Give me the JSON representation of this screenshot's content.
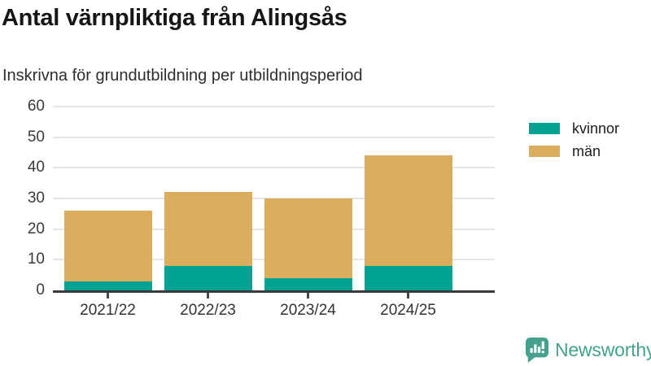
{
  "header": {
    "title": "Antal värnpliktiga från Alingsås",
    "subtitle": "Inskrivna för grundutbildning per utbildningsperiod"
  },
  "chart_data": {
    "type": "bar",
    "stacked": true,
    "title": "Antal värnpliktiga från Alingsås",
    "subtitle": "Inskrivna för grundutbildning per utbildningsperiod",
    "categories": [
      "2021/22",
      "2022/23",
      "2023/24",
      "2024/25"
    ],
    "series": [
      {
        "name": "kvinnor",
        "color": "#00a294",
        "values": [
          3,
          8,
          4,
          8
        ]
      },
      {
        "name": "män",
        "color": "#d9ad5b",
        "values": [
          23,
          24,
          26,
          36
        ]
      }
    ],
    "totals": [
      26,
      32,
      30,
      44
    ],
    "xlabel": "",
    "ylabel": "",
    "ylim": [
      0,
      60
    ],
    "yticks": [
      0,
      10,
      20,
      30,
      40,
      50,
      60
    ],
    "grid": true,
    "legend_position": "right"
  },
  "legend": {
    "items": [
      {
        "label": "kvinnor",
        "color": "#00a294"
      },
      {
        "label": "män",
        "color": "#d9ad5b"
      }
    ]
  },
  "footer": {
    "brand": "Newsworthy",
    "brand_color": "#43a18d",
    "icon": "newsworthy-bubble-barchart-icon"
  }
}
